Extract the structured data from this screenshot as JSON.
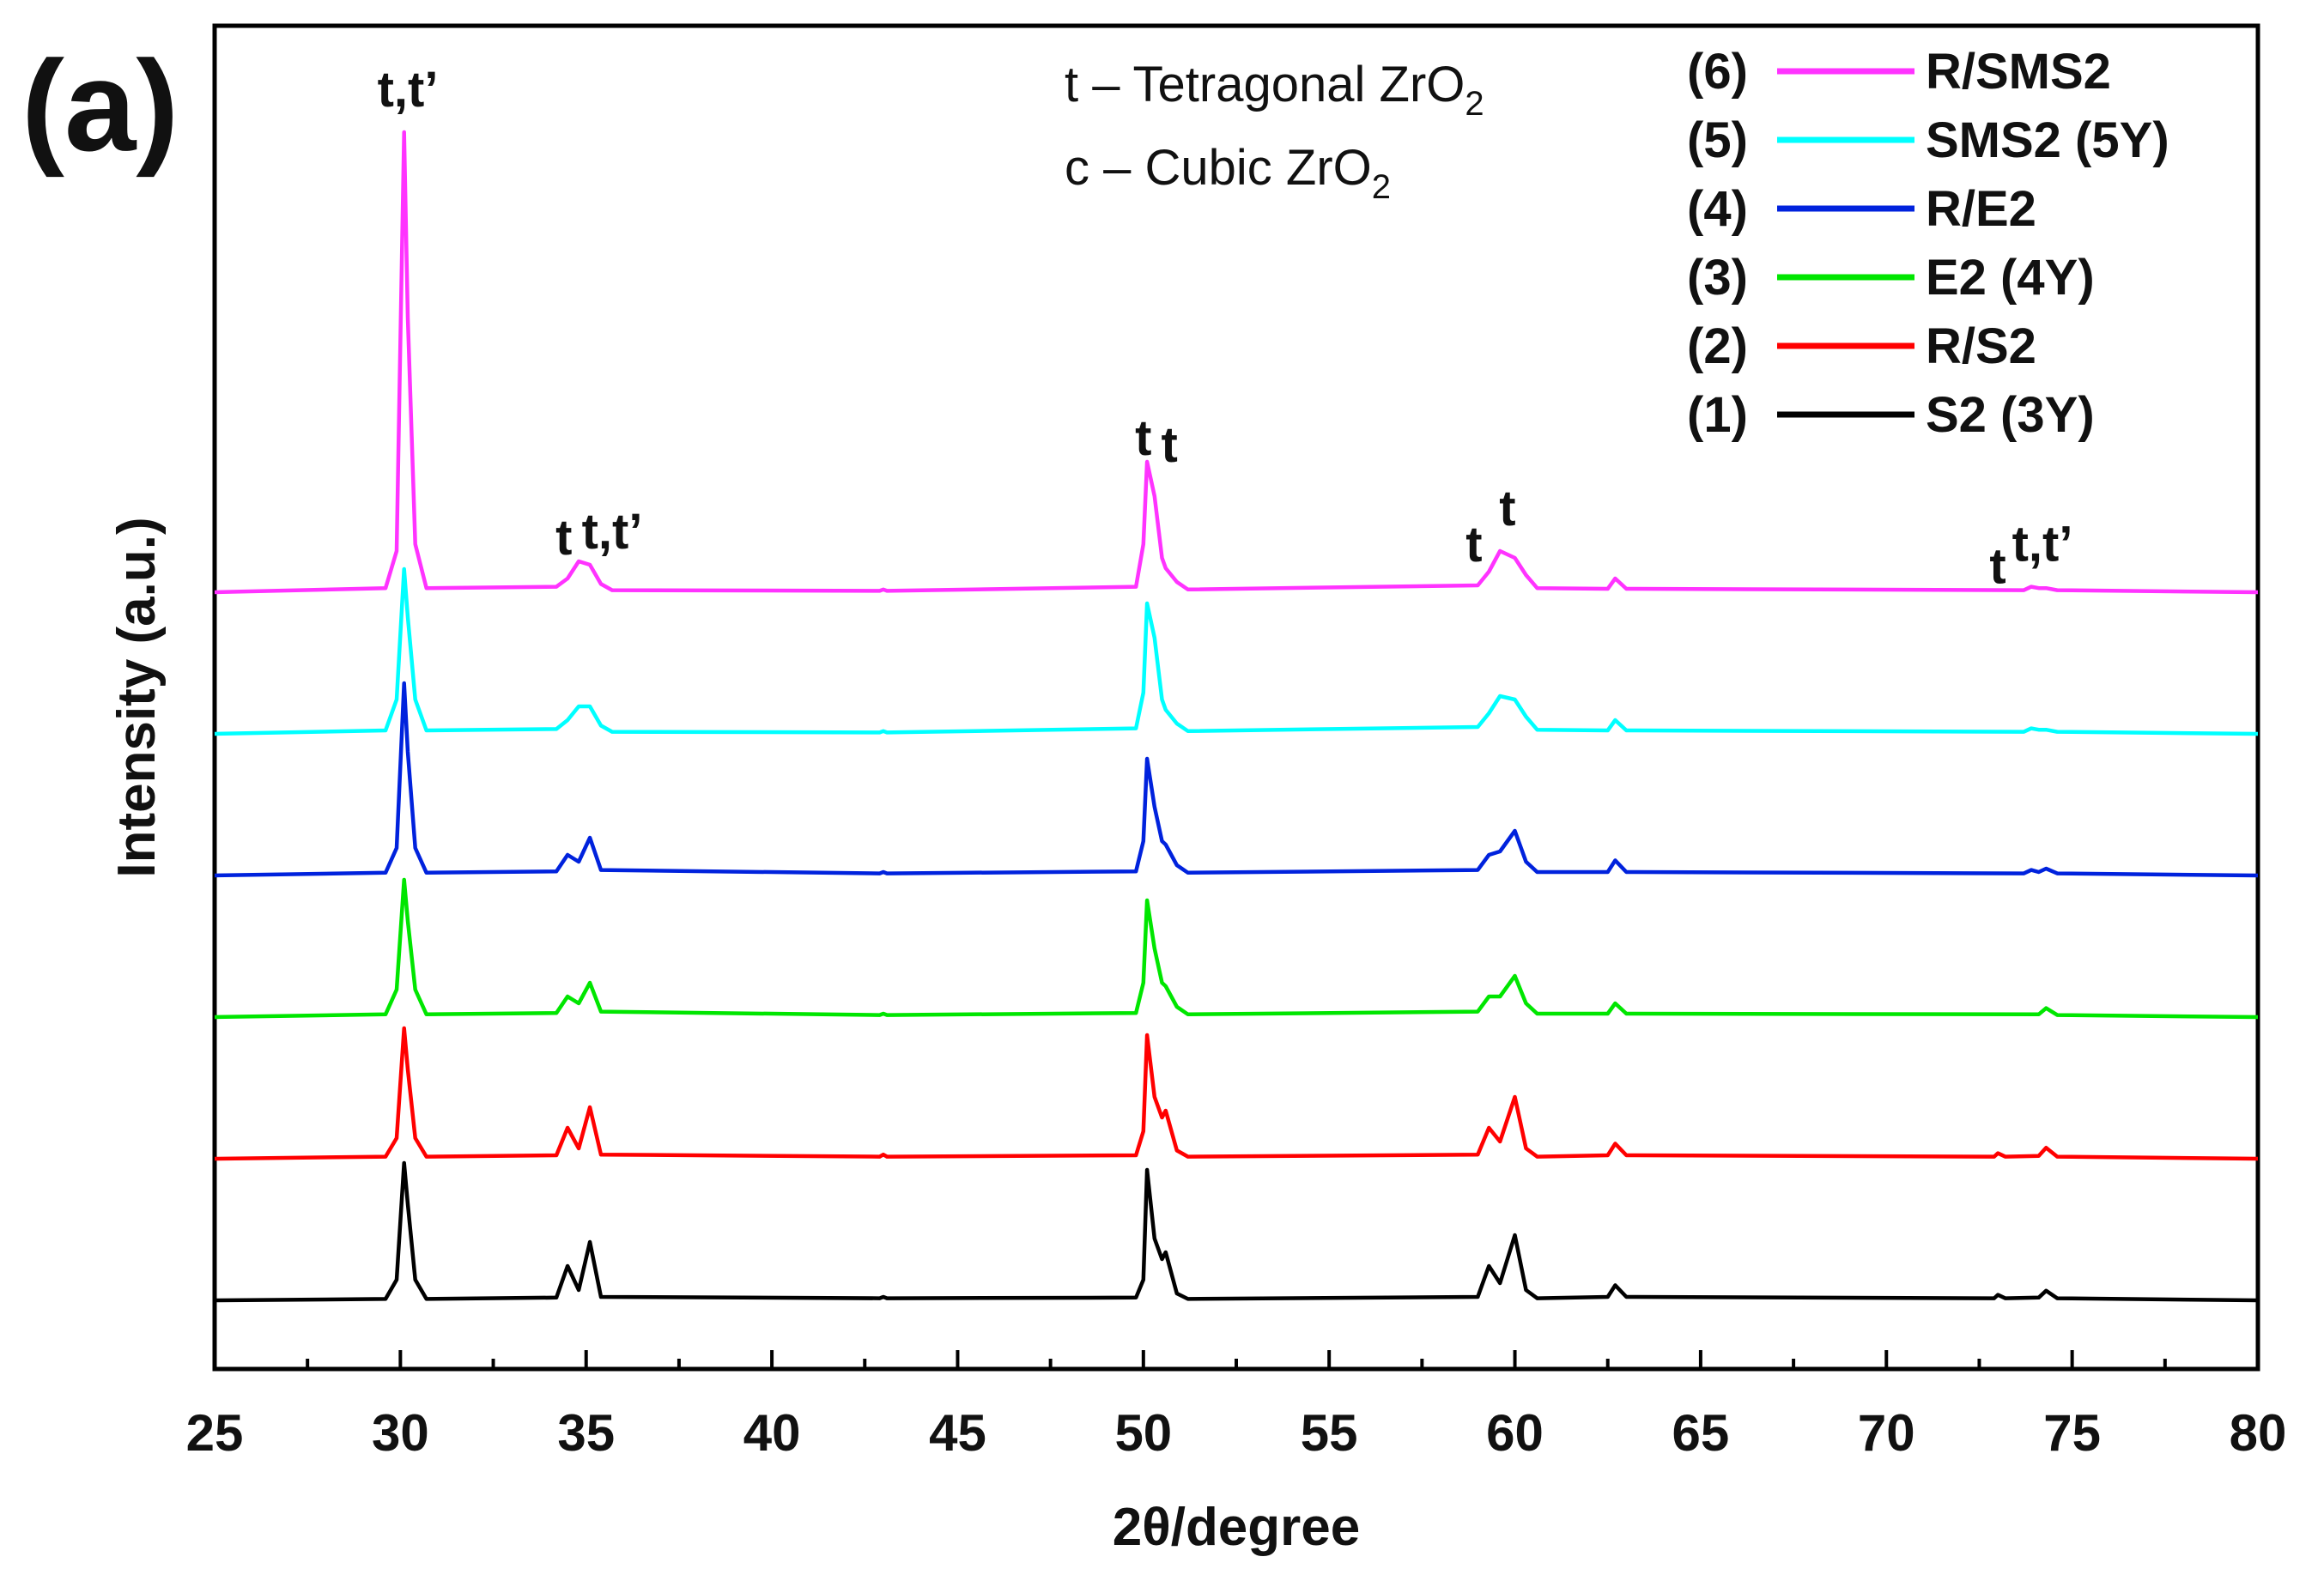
{
  "panel_label": "(a)",
  "phase_notes": [
    {
      "symbol": "t",
      "dash": "–",
      "name": "Tetragonal",
      "formula": "ZrO",
      "subscript": "2"
    },
    {
      "symbol": "c",
      "dash": "–",
      "name": "Cubic",
      "formula": "ZrO",
      "subscript": "2"
    }
  ],
  "peak_labels": [
    {
      "text": "t,t’",
      "x": 30.2
    },
    {
      "text": "t",
      "x": 34.4
    },
    {
      "text": "t,t’",
      "x": 35.7
    },
    {
      "text": "t",
      "x": 50.0
    },
    {
      "text": "t",
      "x": 50.7
    },
    {
      "text": "t",
      "x": 58.9
    },
    {
      "text": "t",
      "x": 59.8
    },
    {
      "text": "t",
      "x": 73.0
    },
    {
      "text": "t,t’",
      "x": 74.2
    }
  ],
  "chart_data": {
    "type": "line",
    "title": "",
    "xlabel": "2θ/degree",
    "ylabel": "Intensity (a.u.)",
    "xlim": [
      25,
      80
    ],
    "ylim": [
      0,
      1
    ],
    "xticks": [
      25,
      30,
      35,
      40,
      45,
      50,
      55,
      60,
      65,
      70,
      75,
      80
    ],
    "grid": false,
    "legend_position": "top-right",
    "y_ticks_shown": false,
    "series": [
      {
        "num": "(1)",
        "name": "S2 (3Y)",
        "color": "#000000",
        "offset": 0.0,
        "points": [
          [
            25,
            0
          ],
          [
            29.6,
            0.002
          ],
          [
            29.9,
            0.03
          ],
          [
            30.1,
            0.2
          ],
          [
            30.2,
            0.14
          ],
          [
            30.4,
            0.03
          ],
          [
            30.7,
            0.002
          ],
          [
            34.2,
            0.004
          ],
          [
            34.5,
            0.05
          ],
          [
            34.8,
            0.015
          ],
          [
            35.1,
            0.085
          ],
          [
            35.4,
            0.005
          ],
          [
            42.9,
            0.003
          ],
          [
            43.0,
            0.005
          ],
          [
            43.1,
            0.003
          ],
          [
            49.8,
            0.004
          ],
          [
            50.0,
            0.03
          ],
          [
            50.1,
            0.19
          ],
          [
            50.3,
            0.09
          ],
          [
            50.5,
            0.06
          ],
          [
            50.6,
            0.07
          ],
          [
            50.9,
            0.01
          ],
          [
            51.2,
            0.002
          ],
          [
            59.0,
            0.005
          ],
          [
            59.3,
            0.05
          ],
          [
            59.6,
            0.025
          ],
          [
            60.0,
            0.095
          ],
          [
            60.3,
            0.015
          ],
          [
            60.6,
            0.003
          ],
          [
            62.5,
            0.005
          ],
          [
            62.7,
            0.022
          ],
          [
            63.0,
            0.005
          ],
          [
            72.9,
            0.003
          ],
          [
            73.0,
            0.008
          ],
          [
            73.2,
            0.003
          ],
          [
            74.1,
            0.004
          ],
          [
            74.3,
            0.014
          ],
          [
            74.6,
            0.003
          ],
          [
            80,
            0
          ]
        ]
      },
      {
        "num": "(2)",
        "name": "R/S2",
        "color": "#ff0000",
        "offset": 0.2,
        "points": [
          [
            25,
            0
          ],
          [
            29.6,
            0.003
          ],
          [
            29.9,
            0.03
          ],
          [
            30.1,
            0.19
          ],
          [
            30.2,
            0.13
          ],
          [
            30.4,
            0.03
          ],
          [
            30.7,
            0.003
          ],
          [
            34.2,
            0.005
          ],
          [
            34.5,
            0.045
          ],
          [
            34.8,
            0.015
          ],
          [
            35.1,
            0.075
          ],
          [
            35.4,
            0.006
          ],
          [
            42.9,
            0.003
          ],
          [
            43.0,
            0.006
          ],
          [
            43.1,
            0.003
          ],
          [
            49.8,
            0.005
          ],
          [
            50.0,
            0.04
          ],
          [
            50.1,
            0.18
          ],
          [
            50.3,
            0.09
          ],
          [
            50.5,
            0.06
          ],
          [
            50.6,
            0.07
          ],
          [
            50.9,
            0.012
          ],
          [
            51.2,
            0.003
          ],
          [
            59.0,
            0.006
          ],
          [
            59.3,
            0.045
          ],
          [
            59.6,
            0.025
          ],
          [
            60.0,
            0.09
          ],
          [
            60.3,
            0.015
          ],
          [
            60.6,
            0.003
          ],
          [
            62.5,
            0.005
          ],
          [
            62.7,
            0.022
          ],
          [
            63.0,
            0.005
          ],
          [
            72.9,
            0.003
          ],
          [
            73.0,
            0.008
          ],
          [
            73.2,
            0.003
          ],
          [
            74.1,
            0.004
          ],
          [
            74.3,
            0.016
          ],
          [
            74.6,
            0.003
          ],
          [
            80,
            0
          ]
        ]
      },
      {
        "num": "(3)",
        "name": "E2 (4Y)",
        "color": "#00e600",
        "offset": 0.4,
        "points": [
          [
            25,
            0
          ],
          [
            29.6,
            0.004
          ],
          [
            29.9,
            0.04
          ],
          [
            30.1,
            0.2
          ],
          [
            30.2,
            0.14
          ],
          [
            30.4,
            0.04
          ],
          [
            30.7,
            0.004
          ],
          [
            34.2,
            0.006
          ],
          [
            34.5,
            0.03
          ],
          [
            34.8,
            0.02
          ],
          [
            35.1,
            0.05
          ],
          [
            35.4,
            0.008
          ],
          [
            42.9,
            0.003
          ],
          [
            43.0,
            0.005
          ],
          [
            43.1,
            0.003
          ],
          [
            49.8,
            0.006
          ],
          [
            50.0,
            0.05
          ],
          [
            50.1,
            0.17
          ],
          [
            50.3,
            0.1
          ],
          [
            50.5,
            0.05
          ],
          [
            50.6,
            0.045
          ],
          [
            50.9,
            0.015
          ],
          [
            51.2,
            0.004
          ],
          [
            59.0,
            0.008
          ],
          [
            59.3,
            0.03
          ],
          [
            59.6,
            0.03
          ],
          [
            60.0,
            0.06
          ],
          [
            60.3,
            0.02
          ],
          [
            60.6,
            0.005
          ],
          [
            62.5,
            0.005
          ],
          [
            62.7,
            0.02
          ],
          [
            63.0,
            0.005
          ],
          [
            74.1,
            0.004
          ],
          [
            74.3,
            0.013
          ],
          [
            74.6,
            0.003
          ],
          [
            80,
            0
          ]
        ]
      },
      {
        "num": "(4)",
        "name": "R/E2",
        "color": "#0022dd",
        "offset": 0.6,
        "points": [
          [
            25,
            0
          ],
          [
            29.6,
            0.004
          ],
          [
            29.9,
            0.04
          ],
          [
            30.1,
            0.28
          ],
          [
            30.2,
            0.18
          ],
          [
            30.4,
            0.04
          ],
          [
            30.7,
            0.004
          ],
          [
            34.2,
            0.006
          ],
          [
            34.5,
            0.03
          ],
          [
            34.8,
            0.02
          ],
          [
            35.1,
            0.055
          ],
          [
            35.4,
            0.008
          ],
          [
            42.9,
            0.003
          ],
          [
            43.0,
            0.005
          ],
          [
            43.1,
            0.003
          ],
          [
            49.8,
            0.006
          ],
          [
            50.0,
            0.05
          ],
          [
            50.1,
            0.17
          ],
          [
            50.3,
            0.1
          ],
          [
            50.5,
            0.05
          ],
          [
            50.6,
            0.045
          ],
          [
            50.9,
            0.015
          ],
          [
            51.2,
            0.004
          ],
          [
            59.0,
            0.008
          ],
          [
            59.3,
            0.03
          ],
          [
            59.6,
            0.035
          ],
          [
            60.0,
            0.065
          ],
          [
            60.3,
            0.02
          ],
          [
            60.6,
            0.005
          ],
          [
            62.5,
            0.005
          ],
          [
            62.7,
            0.022
          ],
          [
            63.0,
            0.005
          ],
          [
            73.7,
            0.003
          ],
          [
            73.9,
            0.008
          ],
          [
            74.1,
            0.005
          ],
          [
            74.3,
            0.01
          ],
          [
            74.6,
            0.003
          ],
          [
            80,
            0
          ]
        ]
      },
      {
        "num": "(5)",
        "name": "SMS2 (5Y)",
        "color": "#00ffff",
        "offset": 0.8,
        "points": [
          [
            25,
            0
          ],
          [
            29.6,
            0.005
          ],
          [
            29.9,
            0.05
          ],
          [
            30.1,
            0.24
          ],
          [
            30.2,
            0.17
          ],
          [
            30.4,
            0.05
          ],
          [
            30.7,
            0.005
          ],
          [
            34.2,
            0.007
          ],
          [
            34.5,
            0.02
          ],
          [
            34.8,
            0.04
          ],
          [
            35.1,
            0.04
          ],
          [
            35.4,
            0.012
          ],
          [
            35.7,
            0.003
          ],
          [
            42.9,
            0.002
          ],
          [
            43.0,
            0.004
          ],
          [
            43.1,
            0.002
          ],
          [
            49.8,
            0.008
          ],
          [
            50.0,
            0.06
          ],
          [
            50.1,
            0.19
          ],
          [
            50.3,
            0.14
          ],
          [
            50.5,
            0.05
          ],
          [
            50.6,
            0.035
          ],
          [
            50.9,
            0.015
          ],
          [
            51.2,
            0.004
          ],
          [
            59.0,
            0.01
          ],
          [
            59.3,
            0.03
          ],
          [
            59.6,
            0.055
          ],
          [
            60.0,
            0.05
          ],
          [
            60.3,
            0.025
          ],
          [
            60.6,
            0.006
          ],
          [
            62.5,
            0.005
          ],
          [
            62.7,
            0.02
          ],
          [
            63.0,
            0.005
          ],
          [
            73.7,
            0.003
          ],
          [
            73.9,
            0.008
          ],
          [
            74.1,
            0.006
          ],
          [
            74.3,
            0.006
          ],
          [
            74.6,
            0.003
          ],
          [
            80,
            0
          ]
        ]
      },
      {
        "num": "(6)",
        "name": "R/SMS2",
        "color": "#ff33ff",
        "offset": 1.0,
        "points": [
          [
            25,
            0
          ],
          [
            29.6,
            0.006
          ],
          [
            29.9,
            0.06
          ],
          [
            30.1,
            0.67
          ],
          [
            30.2,
            0.4
          ],
          [
            30.4,
            0.07
          ],
          [
            30.7,
            0.006
          ],
          [
            34.2,
            0.008
          ],
          [
            34.5,
            0.02
          ],
          [
            34.8,
            0.045
          ],
          [
            35.1,
            0.04
          ],
          [
            35.4,
            0.012
          ],
          [
            35.7,
            0.003
          ],
          [
            42.9,
            0.002
          ],
          [
            43.0,
            0.004
          ],
          [
            43.1,
            0.002
          ],
          [
            49.8,
            0.008
          ],
          [
            50.0,
            0.07
          ],
          [
            50.1,
            0.19
          ],
          [
            50.3,
            0.14
          ],
          [
            50.5,
            0.05
          ],
          [
            50.6,
            0.035
          ],
          [
            50.9,
            0.015
          ],
          [
            51.2,
            0.004
          ],
          [
            59.0,
            0.01
          ],
          [
            59.3,
            0.03
          ],
          [
            59.6,
            0.06
          ],
          [
            60.0,
            0.05
          ],
          [
            60.3,
            0.025
          ],
          [
            60.6,
            0.006
          ],
          [
            62.5,
            0.005
          ],
          [
            62.7,
            0.02
          ],
          [
            63.0,
            0.005
          ],
          [
            73.7,
            0.003
          ],
          [
            73.9,
            0.008
          ],
          [
            74.1,
            0.006
          ],
          [
            74.3,
            0.006
          ],
          [
            74.6,
            0.003
          ],
          [
            80,
            0
          ]
        ]
      }
    ]
  }
}
